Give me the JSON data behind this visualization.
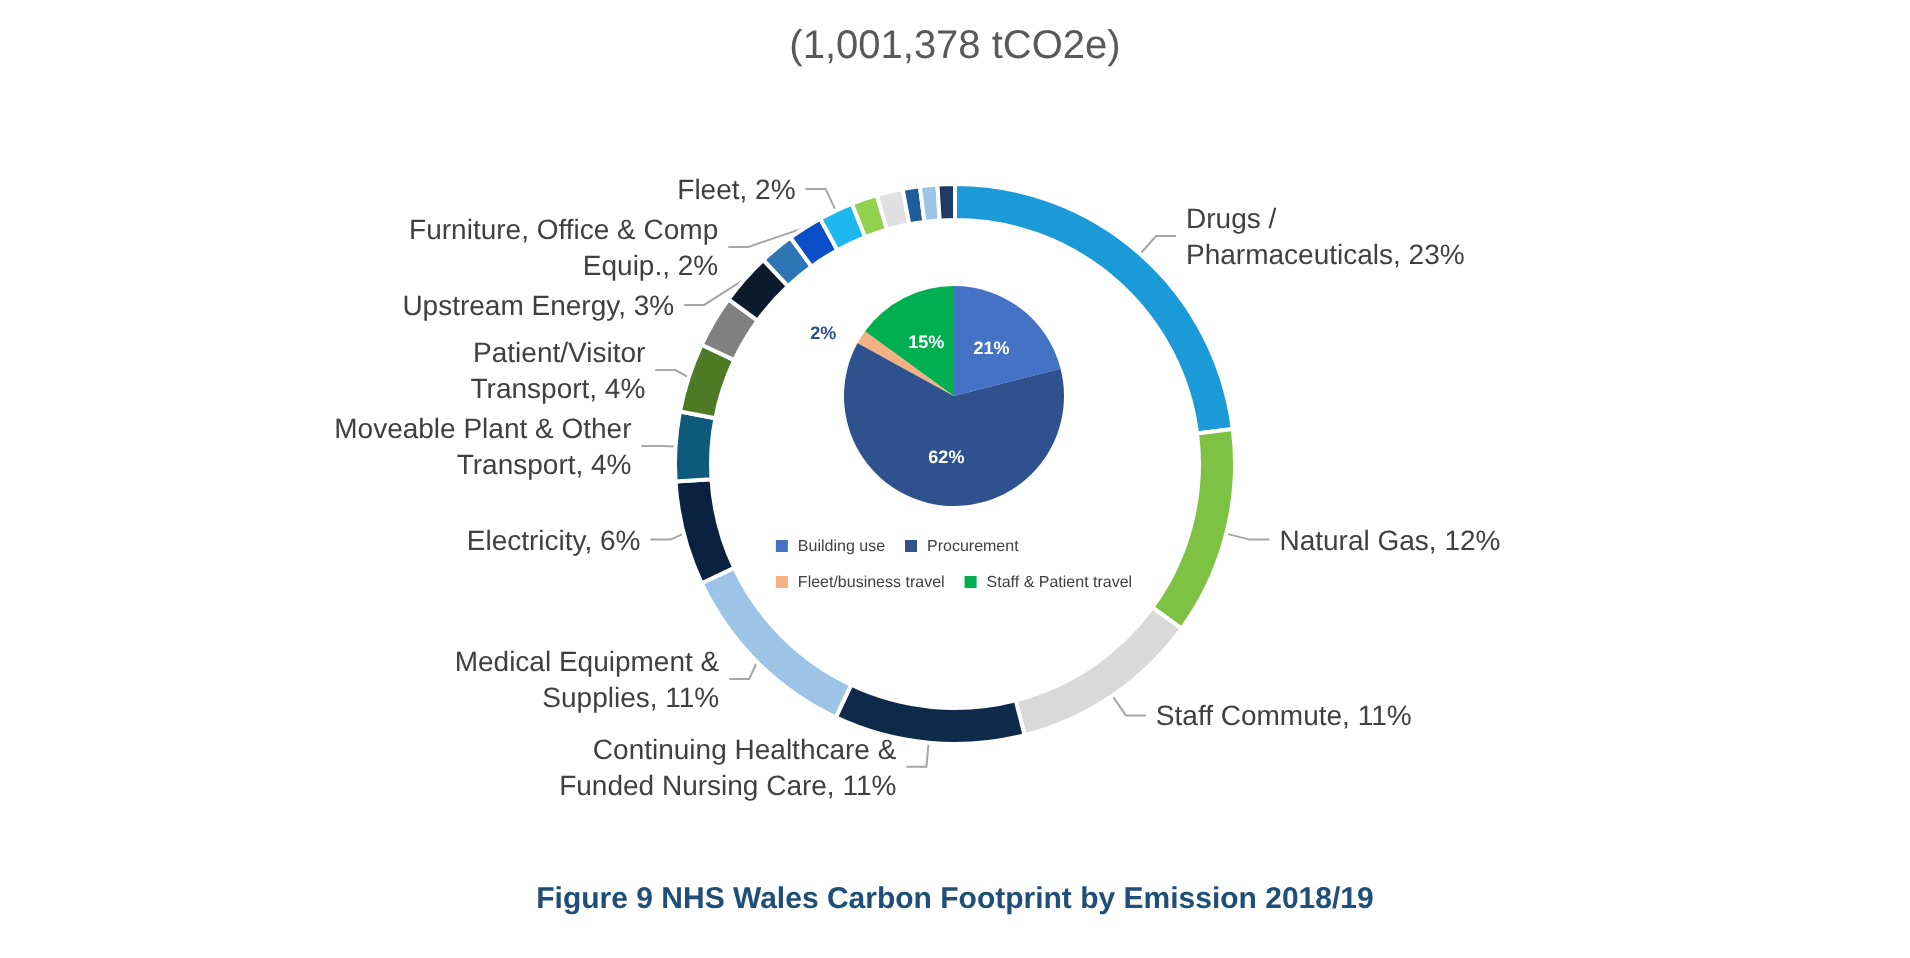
{
  "chart_data": [
    {
      "type": "donut",
      "title": "(1,001,378 tCO2e)",
      "annotations": [
        "Figure 9 NHS Wales Carbon Footprint by Emission 2018/19"
      ],
      "categories": [
        "Drugs / Pharmaceuticals",
        "Natural Gas",
        "Staff Commute",
        "Continuing Healthcare & Funded Nursing Care",
        "Medical Equipment & Supplies",
        "Electricity",
        "Moveable Plant & Other Transport",
        "Patient/Visitor Transport",
        null,
        "Upstream Energy",
        null,
        "Furniture, Office & Comp Equip.",
        "Fleet",
        null,
        null,
        null,
        null,
        null
      ],
      "values": [
        23,
        12,
        11,
        11,
        11,
        6,
        4,
        4,
        3,
        3,
        2,
        2,
        2,
        1.5,
        1.5,
        1,
        1,
        1
      ],
      "value_labels": [
        "23%",
        "12%",
        "11%",
        "11%",
        "11%",
        "6%",
        "4%",
        "4%",
        null,
        "3%",
        null,
        "2%",
        "2%",
        null,
        null,
        null,
        null,
        null
      ],
      "colors": [
        "#1a9ad6",
        "#7dc242",
        "#d9d9d9",
        "#0d2a4a",
        "#9dc3e6",
        "#0a2240",
        "#0e5a7a",
        "#4e7a26",
        "#808080",
        "#0b1b2c",
        "#2e75b6",
        "#0b4fc8",
        "#1eb8f0",
        "#92d050",
        "#e0e0e0",
        "#1f5c99",
        "#9dc3e6",
        "#203864"
      ],
      "legend": false
    },
    {
      "type": "pie",
      "categories": [
        "Building use",
        "Procurement",
        "Fleet/business travel",
        "Staff & Patient travel"
      ],
      "values": [
        21,
        62,
        2,
        15
      ],
      "value_labels": [
        "21%",
        "62%",
        "2%",
        "15%"
      ],
      "colors": [
        "#4472c4",
        "#2f528f",
        "#f4b183",
        "#00b050"
      ],
      "legend": "bottom"
    }
  ]
}
